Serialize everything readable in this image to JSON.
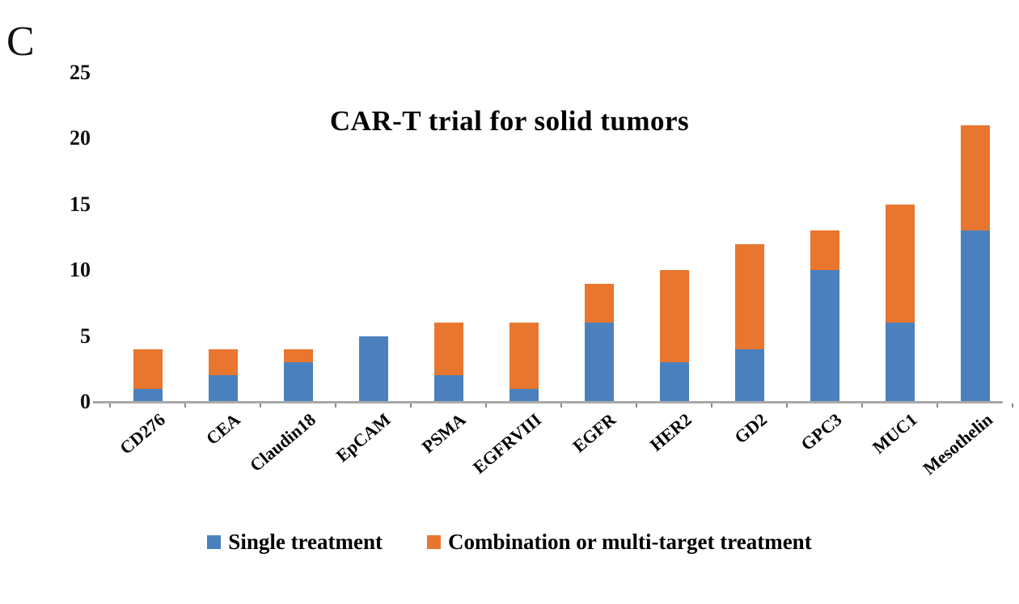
{
  "panel_label": "C",
  "chart_data": {
    "type": "bar",
    "stacked": true,
    "title": "CAR-T trial for solid tumors",
    "categories": [
      "CD276",
      "CEA",
      "Claudin18",
      "EpCAM",
      "PSMA",
      "EGFRVIII",
      "EGFR",
      "HER2",
      "GD2",
      "GPC3",
      "MUC1",
      "Mesothelin"
    ],
    "series": [
      {
        "name": "Single treatment",
        "color": "#4A80BE",
        "values": [
          1,
          2,
          3,
          5,
          2,
          1,
          6,
          3,
          4,
          10,
          6,
          13
        ]
      },
      {
        "name": "Combination or multi-target treatment",
        "color": "#E8762E",
        "values": [
          3,
          2,
          1,
          0,
          4,
          5,
          3,
          7,
          8,
          3,
          9,
          8
        ]
      }
    ],
    "totals": [
      4,
      4,
      4,
      5,
      6,
      6,
      9,
      10,
      12,
      13,
      15,
      21
    ],
    "ylim": [
      0,
      25
    ],
    "yticks": [
      0,
      5,
      10,
      15,
      20,
      25
    ],
    "xlabel": "",
    "ylabel": "",
    "grid": false,
    "legend_position": "bottom",
    "axis_line_color": "#A9A9A9"
  }
}
